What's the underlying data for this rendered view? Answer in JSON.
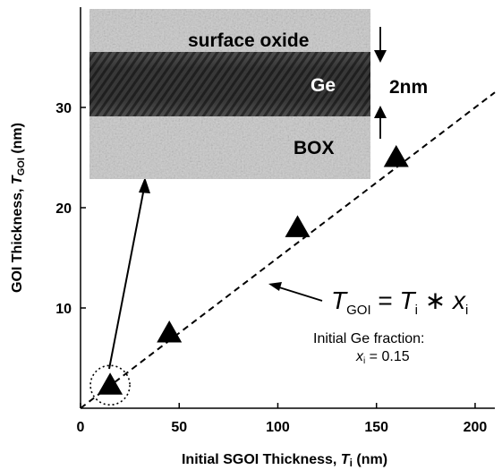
{
  "chart_data": {
    "type": "scatter",
    "x": [
      15,
      45,
      110,
      160
    ],
    "y": [
      2.3,
      7.5,
      18,
      25
    ],
    "xlim": [
      0,
      210
    ],
    "ylim": [
      0,
      40
    ],
    "xticks": [
      "0",
      "50",
      "100",
      "150",
      "200"
    ],
    "yticks": [
      "10",
      "20",
      "30"
    ],
    "xlabel": {
      "main": "Initial SGOI Thickness, ",
      "var": "T",
      "sub": "i",
      "unit": " (nm)"
    },
    "ylabel": {
      "main": "GOI Thickness, ",
      "var": "T",
      "sub": "GOI",
      "unit": "  (nm)"
    },
    "fit_line": {
      "slope": 0.15,
      "style": "dashed"
    },
    "grid": false,
    "marker": "triangle",
    "marker_color": "#000000"
  },
  "annotations": {
    "equation": {
      "lhs_var": "T",
      "lhs_sub": "GOI",
      "op": " = ",
      "t_var": "T",
      "t_sub": "i",
      "times": " ∗ ",
      "x_var": "x",
      "x_sub": "i"
    },
    "fraction_line1": "Initial Ge fraction:",
    "fraction_var": "x",
    "fraction_sub": "i",
    "fraction_value": " = 0.15"
  },
  "inset": {
    "label_surface_oxide": "surface oxide",
    "label_ge": "Ge",
    "label_box": "BOX",
    "label_thickness": "2nm"
  }
}
